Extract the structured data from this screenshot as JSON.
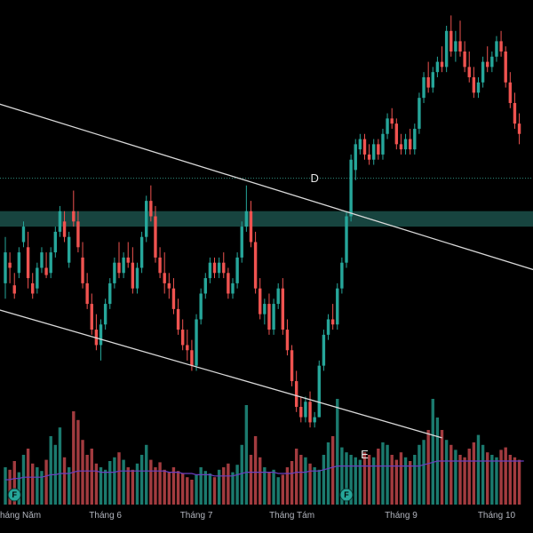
{
  "chart_data": {
    "type": "candlestick",
    "colors": {
      "background": "#000000",
      "up": "#26a69a",
      "down": "#ef5350",
      "up_volume": "#1b7a6e",
      "down_volume": "#a23b3f",
      "volume_ma": "#6a3fc0",
      "trendline": "#d9d9d9",
      "zone": "#17443f",
      "dotted_level": "#2f8f7f",
      "marker": "#26a69a"
    },
    "x_axis": {
      "ticks": [
        {
          "label": "háng Năm",
          "index": 0
        },
        {
          "label": "Tháng 6",
          "index": 22
        },
        {
          "label": "Tháng 7",
          "index": 42
        },
        {
          "label": "Tháng Tám",
          "index": 63
        },
        {
          "label": "Tháng 9",
          "index": 87
        },
        {
          "label": "Tháng 10",
          "index": 108
        }
      ]
    },
    "y_range": [
      34.5,
      81.5
    ],
    "candles": [
      [
        54.0,
        58.5,
        52.5,
        57.0
      ],
      [
        56.0,
        57.0,
        54.0,
        55.5
      ],
      [
        53.8,
        55.0,
        52.5,
        53.0
      ],
      [
        55.0,
        57.5,
        54.5,
        57.0
      ],
      [
        58.0,
        60.0,
        57.5,
        59.5
      ],
      [
        57.5,
        59.0,
        53.5,
        54.5
      ],
      [
        54.0,
        55.0,
        52.5,
        53.0
      ],
      [
        53.5,
        56.0,
        53.0,
        55.5
      ],
      [
        55.5,
        57.5,
        55.0,
        57.0
      ],
      [
        55.5,
        57.0,
        54.5,
        54.8
      ],
      [
        55.0,
        57.5,
        54.5,
        57.0
      ],
      [
        57.0,
        59.5,
        56.5,
        59.0
      ],
      [
        59.0,
        61.5,
        58.5,
        61.0
      ],
      [
        60.0,
        61.0,
        58.0,
        58.5
      ],
      [
        56.0,
        59.0,
        55.5,
        58.5
      ],
      [
        61.0,
        63.0,
        59.5,
        60.0
      ],
      [
        60.0,
        61.0,
        57.0,
        57.5
      ],
      [
        56.5,
        58.0,
        53.5,
        54.0
      ],
      [
        54.0,
        55.0,
        51.5,
        52.0
      ],
      [
        52.0,
        53.0,
        49.0,
        49.5
      ],
      [
        49.5,
        51.0,
        47.5,
        48.0
      ],
      [
        48.0,
        50.5,
        46.5,
        50.0
      ],
      [
        50.0,
        52.5,
        49.5,
        52.0
      ],
      [
        52.0,
        54.5,
        51.5,
        54.0
      ],
      [
        54.0,
        56.5,
        53.5,
        56.0
      ],
      [
        56.0,
        58.0,
        54.5,
        55.0
      ],
      [
        55.0,
        57.0,
        54.5,
        56.5
      ],
      [
        56.5,
        58.0,
        55.5,
        56.0
      ],
      [
        56.0,
        57.5,
        53.0,
        53.5
      ],
      [
        53.5,
        56.0,
        53.0,
        55.5
      ],
      [
        55.5,
        59.0,
        55.0,
        58.5
      ],
      [
        58.5,
        62.5,
        58.0,
        62.0
      ],
      [
        62.0,
        63.5,
        60.0,
        60.5
      ],
      [
        60.5,
        61.5,
        56.0,
        56.5
      ],
      [
        56.5,
        57.5,
        54.5,
        55.0
      ],
      [
        55.0,
        57.0,
        53.0,
        54.0
      ],
      [
        54.0,
        55.0,
        52.5,
        53.5
      ],
      [
        53.5,
        54.5,
        51.0,
        51.5
      ],
      [
        51.5,
        52.5,
        49.0,
        49.5
      ],
      [
        49.5,
        50.5,
        47.5,
        48.0
      ],
      [
        48.0,
        49.5,
        46.5,
        47.5
      ],
      [
        47.5,
        48.5,
        45.5,
        46.0
      ],
      [
        46.0,
        51.0,
        45.5,
        50.5
      ],
      [
        50.5,
        53.5,
        50.0,
        53.0
      ],
      [
        53.0,
        55.0,
        52.5,
        54.5
      ],
      [
        54.5,
        56.5,
        54.0,
        56.0
      ],
      [
        56.0,
        56.5,
        54.5,
        55.0
      ],
      [
        55.0,
        56.5,
        54.5,
        56.0
      ],
      [
        56.0,
        57.0,
        54.5,
        55.0
      ],
      [
        55.0,
        55.5,
        52.5,
        53.0
      ],
      [
        53.0,
        54.5,
        52.5,
        54.0
      ],
      [
        54.0,
        57.0,
        53.5,
        56.5
      ],
      [
        56.5,
        60.0,
        56.0,
        59.5
      ],
      [
        59.5,
        63.5,
        59.0,
        61.0
      ],
      [
        61.0,
        62.0,
        57.5,
        58.0
      ],
      [
        58.0,
        59.0,
        53.0,
        53.5
      ],
      [
        53.5,
        54.5,
        50.5,
        51.0
      ],
      [
        51.0,
        52.5,
        50.0,
        52.0
      ],
      [
        52.0,
        53.0,
        49.0,
        49.5
      ],
      [
        49.5,
        52.5,
        49.0,
        52.0
      ],
      [
        52.0,
        54.0,
        51.5,
        53.5
      ],
      [
        53.5,
        54.5,
        49.0,
        49.5
      ],
      [
        49.5,
        50.5,
        47.0,
        47.5
      ],
      [
        47.5,
        48.0,
        44.0,
        44.5
      ],
      [
        44.5,
        45.5,
        41.5,
        42.0
      ],
      [
        42.0,
        43.0,
        40.5,
        41.0
      ],
      [
        41.0,
        43.0,
        40.5,
        42.5
      ],
      [
        42.5,
        43.5,
        40.0,
        40.5
      ],
      [
        40.5,
        41.5,
        40.0,
        41.0
      ],
      [
        41.0,
        46.5,
        41.0,
        46.0
      ],
      [
        46.0,
        49.5,
        45.5,
        49.0
      ],
      [
        49.0,
        51.0,
        48.5,
        50.5
      ],
      [
        50.5,
        52.0,
        49.5,
        50.0
      ],
      [
        50.0,
        54.0,
        49.5,
        53.5
      ],
      [
        53.5,
        56.5,
        53.0,
        56.0
      ],
      [
        56.0,
        61.0,
        55.5,
        60.5
      ],
      [
        60.5,
        66.5,
        60.0,
        66.0
      ],
      [
        65.0,
        68.0,
        64.0,
        67.5
      ],
      [
        67.0,
        68.5,
        66.5,
        68.0
      ],
      [
        68.0,
        68.5,
        66.0,
        66.5
      ],
      [
        66.5,
        67.5,
        65.5,
        66.0
      ],
      [
        66.0,
        68.0,
        65.5,
        67.5
      ],
      [
        67.5,
        68.0,
        66.0,
        66.5
      ],
      [
        66.5,
        69.0,
        66.0,
        68.5
      ],
      [
        68.5,
        70.5,
        68.0,
        70.0
      ],
      [
        70.0,
        71.0,
        69.0,
        69.5
      ],
      [
        69.5,
        70.0,
        67.0,
        67.5
      ],
      [
        67.5,
        68.5,
        66.5,
        67.0
      ],
      [
        67.0,
        68.5,
        66.5,
        68.0
      ],
      [
        68.0,
        69.0,
        66.5,
        67.0
      ],
      [
        67.0,
        69.5,
        66.5,
        69.0
      ],
      [
        69.0,
        72.5,
        68.5,
        72.0
      ],
      [
        72.0,
        74.5,
        71.5,
        74.0
      ],
      [
        74.0,
        75.5,
        72.5,
        73.0
      ],
      [
        73.0,
        75.0,
        72.5,
        74.5
      ],
      [
        74.5,
        76.0,
        74.0,
        75.5
      ],
      [
        75.5,
        77.0,
        74.5,
        75.0
      ],
      [
        75.0,
        79.0,
        74.5,
        78.5
      ],
      [
        78.5,
        80.0,
        76.0,
        76.5
      ],
      [
        76.5,
        78.5,
        75.5,
        77.5
      ],
      [
        77.5,
        79.5,
        76.0,
        76.5
      ],
      [
        76.5,
        77.5,
        74.5,
        75.0
      ],
      [
        75.0,
        76.5,
        73.5,
        74.0
      ],
      [
        74.0,
        75.0,
        72.0,
        72.5
      ],
      [
        72.5,
        74.0,
        72.0,
        73.5
      ],
      [
        73.5,
        76.0,
        73.0,
        75.5
      ],
      [
        75.5,
        77.0,
        74.5,
        75.0
      ],
      [
        75.0,
        76.5,
        74.5,
        76.0
      ],
      [
        76.0,
        78.0,
        75.5,
        77.5
      ],
      [
        77.5,
        78.5,
        76.0,
        76.5
      ],
      [
        76.5,
        77.0,
        73.0,
        73.5
      ],
      [
        73.5,
        74.5,
        71.0,
        71.5
      ],
      [
        71.5,
        72.5,
        69.0,
        69.5
      ],
      [
        69.5,
        70.5,
        67.5,
        68.5
      ]
    ],
    "volumes": [
      30,
      28,
      35,
      26,
      40,
      45,
      33,
      30,
      27,
      36,
      55,
      48,
      62,
      38,
      30,
      75,
      68,
      52,
      40,
      45,
      33,
      30,
      28,
      35,
      38,
      42,
      36,
      30,
      28,
      33,
      40,
      48,
      36,
      30,
      34,
      28,
      26,
      30,
      27,
      25,
      22,
      20,
      24,
      30,
      27,
      25,
      22,
      28,
      30,
      33,
      26,
      32,
      48,
      80,
      40,
      55,
      38,
      30,
      26,
      28,
      22,
      24,
      30,
      35,
      45,
      40,
      38,
      33,
      30,
      28,
      40,
      50,
      55,
      85,
      46,
      42,
      40,
      38,
      36,
      42,
      40,
      38,
      45,
      50,
      48,
      40,
      36,
      42,
      38,
      35,
      40,
      48,
      52,
      60,
      85,
      70,
      60,
      52,
      48,
      44,
      40,
      38,
      45,
      50,
      56,
      48,
      42,
      40,
      38,
      44,
      46,
      40,
      38,
      36,
      30
    ],
    "volume_ma": [
      20,
      20,
      21,
      21,
      22,
      22,
      22,
      22,
      22,
      23,
      24,
      24,
      25,
      25,
      25,
      26,
      27,
      27,
      27,
      27,
      27,
      26,
      26,
      26,
      26,
      27,
      27,
      27,
      27,
      27,
      27,
      27,
      27,
      27,
      27,
      27,
      26,
      26,
      26,
      25,
      25,
      25,
      24,
      24,
      24,
      24,
      23,
      23,
      23,
      23,
      23,
      24,
      25,
      26,
      26,
      26,
      26,
      26,
      26,
      26,
      25,
      25,
      25,
      25,
      26,
      26,
      26,
      27,
      27,
      27,
      28,
      29,
      30,
      31,
      31,
      31,
      31,
      31,
      31,
      31,
      31,
      31,
      31,
      31,
      31,
      31,
      31,
      31,
      31,
      31,
      31,
      31,
      32,
      33,
      34,
      35,
      35,
      35,
      35,
      35,
      35,
      35,
      35,
      35,
      35,
      35,
      35,
      35,
      35,
      35,
      35,
      35,
      35,
      35,
      35
    ],
    "annotations": {
      "zone": {
        "low": 59.5,
        "high": 61.0
      },
      "dotted_level": 64.2,
      "upper_trendline": {
        "from": [
          -2,
          71.5
        ],
        "to": [
          133,
          53.0
        ]
      },
      "lower_trendline": {
        "from": [
          -2,
          51.5
        ],
        "to": [
          96,
          39.0
        ]
      },
      "labels": [
        {
          "text": "D",
          "index": 68,
          "price": 63.8
        },
        {
          "text": "E",
          "index": 79,
          "price": 37.0
        }
      ],
      "markers": [
        {
          "text": "F",
          "index": 2
        },
        {
          "text": "F",
          "index": 75
        }
      ]
    }
  }
}
